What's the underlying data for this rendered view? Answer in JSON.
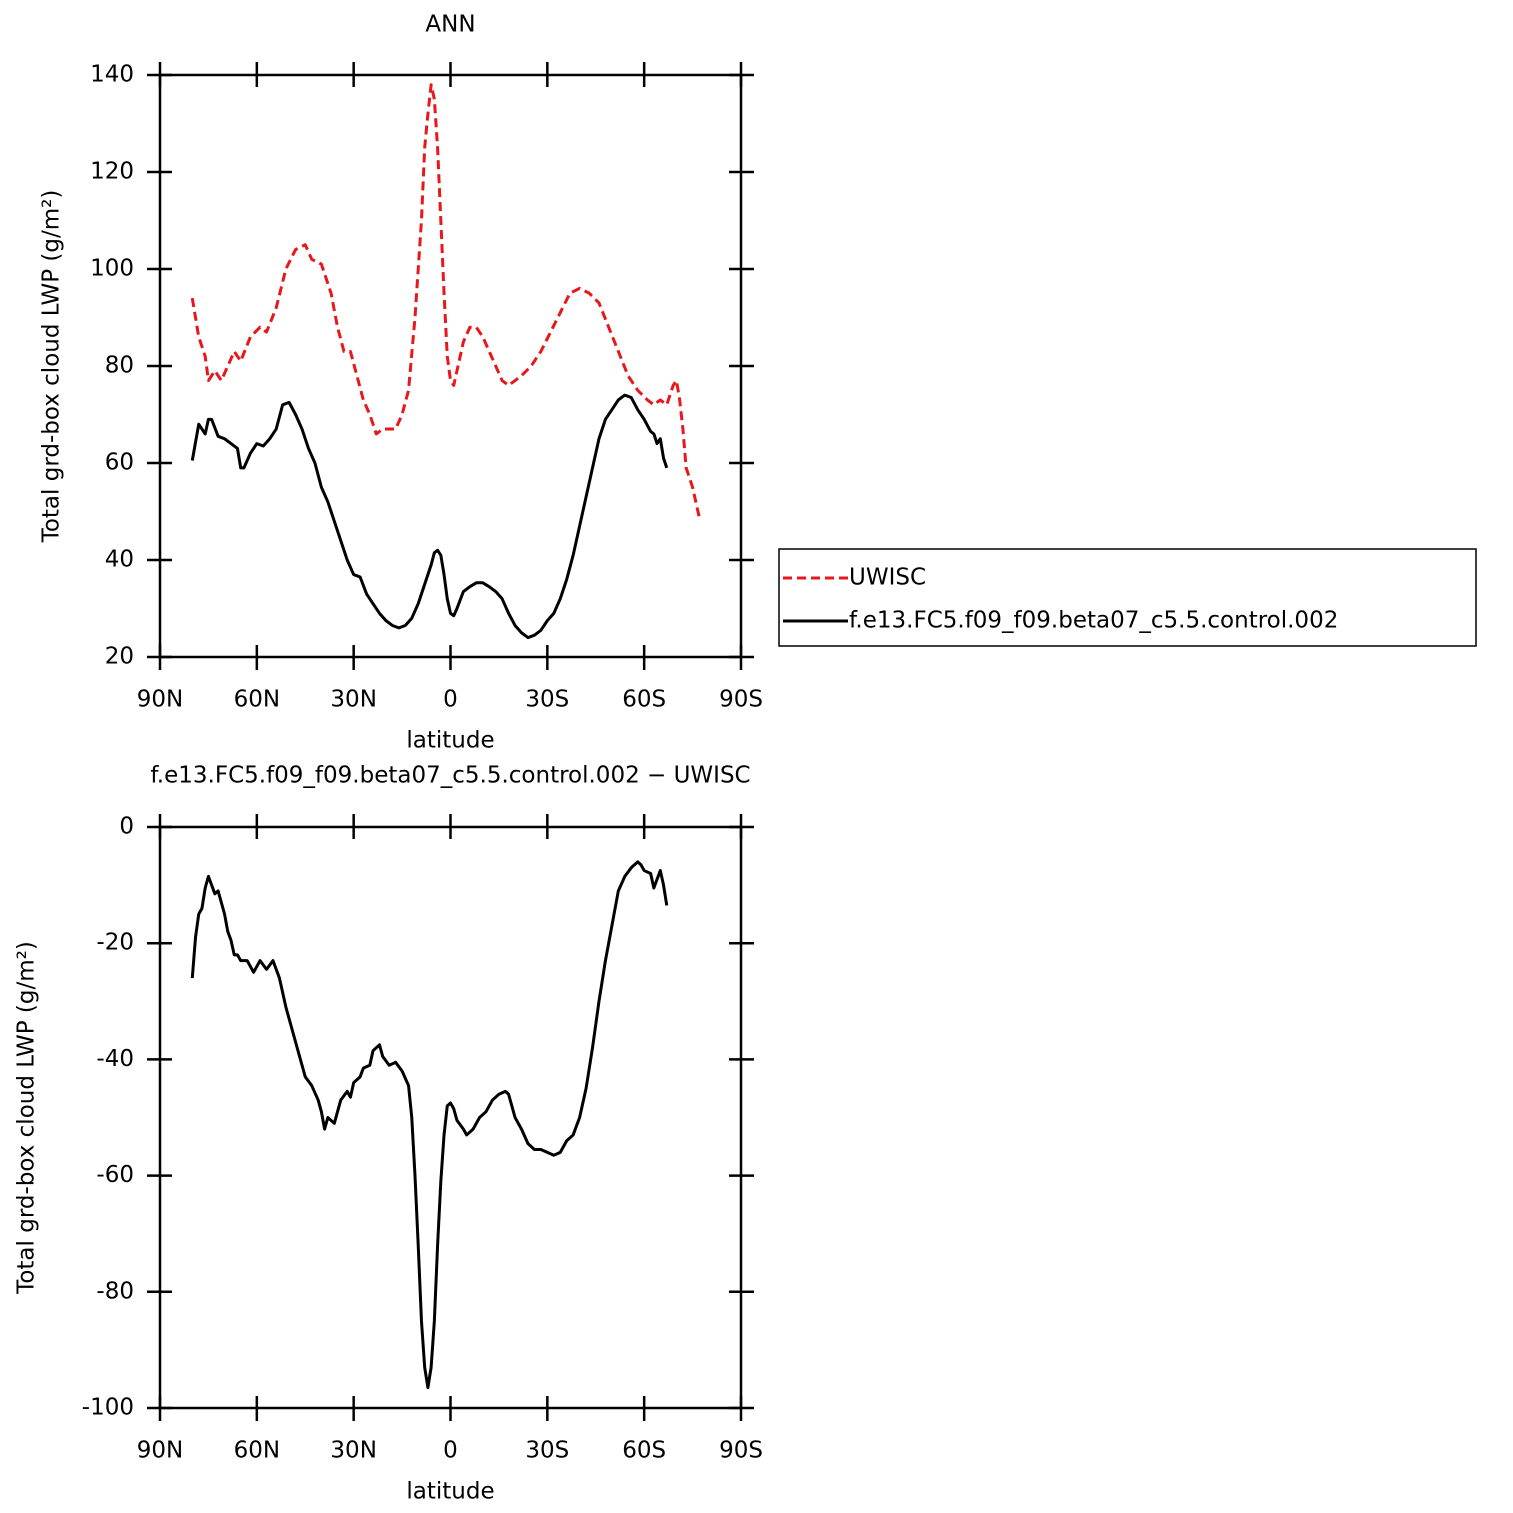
{
  "chart_data": [
    {
      "type": "line",
      "title": "ANN",
      "xlabel": "latitude",
      "ylabel": "Total grd-box cloud LWP (g/m²)",
      "xlim": [
        90,
        -90
      ],
      "xticks": [
        {
          "value": 90,
          "label": "90N"
        },
        {
          "value": 60,
          "label": "60N"
        },
        {
          "value": 30,
          "label": "30N"
        },
        0,
        {
          "value": -30,
          "label": "30S"
        },
        {
          "value": -60,
          "label": "60S"
        },
        {
          "value": -90,
          "label": "90S"
        }
      ],
      "ylim": [
        20,
        140
      ],
      "yticks": [
        20,
        40,
        60,
        80,
        100,
        120,
        140
      ],
      "legend": "right",
      "series": [
        {
          "name": "UWISC",
          "color": "#e8171b",
          "style": "dashed",
          "x": [
            80,
            78,
            76,
            75,
            73,
            71,
            69,
            67,
            65,
            62,
            59,
            57,
            54,
            51,
            48,
            45,
            43,
            40,
            37,
            35,
            33,
            31,
            29,
            27,
            25,
            23,
            21,
            19,
            17,
            15,
            13,
            11,
            9,
            8,
            7,
            6,
            5,
            4,
            3,
            2,
            1,
            0,
            -1,
            -2,
            -4,
            -6,
            -8,
            -10,
            -12,
            -14,
            -16,
            -18,
            -20,
            -22,
            -25,
            -28,
            -31,
            -34,
            -37,
            -40,
            -43,
            -46,
            -49,
            -52,
            -55,
            -58,
            -61,
            -63,
            -65,
            -67,
            -69,
            -70,
            -71,
            -72,
            -73,
            -75,
            -77
          ],
          "values": [
            94,
            86,
            82,
            77,
            79,
            77,
            80,
            83,
            81,
            86,
            88,
            87,
            92,
            100,
            104,
            105,
            102,
            101,
            95,
            88,
            83,
            83,
            78,
            73,
            70,
            66,
            67,
            67,
            67,
            70,
            75,
            90,
            110,
            125,
            132,
            138,
            135,
            125,
            110,
            95,
            82,
            77,
            76,
            79,
            85,
            88,
            88,
            86,
            83,
            80,
            77,
            76,
            77,
            78,
            80,
            83,
            87,
            91,
            95,
            96,
            95,
            93,
            88,
            83,
            78,
            75,
            73,
            72,
            73,
            72,
            76,
            77,
            73,
            67,
            59,
            55,
            49
          ]
        },
        {
          "name": "f.e13.FC5.f09_f09.beta07_c5.5.control.002",
          "color": "#000000",
          "style": "solid",
          "x": [
            80,
            78,
            77,
            76,
            75,
            74,
            72,
            70,
            68,
            66,
            65,
            64,
            62,
            60,
            58,
            56,
            54,
            52,
            50,
            48,
            46,
            44,
            42,
            40,
            38,
            36,
            34,
            32,
            30,
            28,
            26,
            24,
            22,
            20,
            18,
            16,
            14,
            12,
            10,
            8,
            6,
            5,
            4,
            3,
            2,
            1,
            0,
            -1,
            -2,
            -4,
            -6,
            -8,
            -10,
            -12,
            -14,
            -16,
            -18,
            -20,
            -22,
            -24,
            -26,
            -28,
            -30,
            -32,
            -34,
            -36,
            -38,
            -40,
            -42,
            -44,
            -46,
            -48,
            -50,
            -52,
            -54,
            -56,
            -58,
            -60,
            -62,
            -63,
            -64,
            -65,
            -66,
            -67
          ],
          "values": [
            60.5,
            68,
            67,
            66,
            69,
            69,
            65.5,
            65,
            64,
            63,
            59,
            59,
            62,
            64,
            63.5,
            65,
            67,
            72,
            72.5,
            70,
            67,
            63,
            60,
            55,
            52,
            48,
            44,
            40,
            37,
            36.5,
            33,
            31,
            29,
            27.5,
            26.5,
            26,
            26.5,
            28,
            31,
            35,
            39,
            41.5,
            42,
            41,
            37,
            32,
            29,
            28.5,
            30,
            33.5,
            34.5,
            35.3,
            35.3,
            34.5,
            33.5,
            32,
            29,
            26.5,
            25,
            24,
            24.5,
            25.5,
            27.5,
            29,
            32,
            36,
            41,
            47,
            53,
            59,
            65,
            69,
            71,
            73,
            74,
            73.5,
            71,
            69,
            66.5,
            66,
            64,
            65,
            61,
            59
          ]
        }
      ]
    },
    {
      "type": "line",
      "title": "f.e13.FC5.f09_f09.beta07_c5.5.control.002 − UWISC",
      "xlabel": "latitude",
      "ylabel": "Total grd-box cloud LWP (g/m²)",
      "xlim": [
        90,
        -90
      ],
      "xticks": [
        {
          "value": 90,
          "label": "90N"
        },
        {
          "value": 60,
          "label": "60N"
        },
        {
          "value": 30,
          "label": "30N"
        },
        0,
        {
          "value": -30,
          "label": "30S"
        },
        {
          "value": -60,
          "label": "60S"
        },
        {
          "value": -90,
          "label": "90S"
        }
      ],
      "ylim": [
        -100,
        0
      ],
      "yticks": [
        -100,
        -80,
        -60,
        -40,
        -20,
        0
      ],
      "series": [
        {
          "color": "#000000",
          "style": "solid",
          "x": [
            80,
            79,
            78,
            77,
            76,
            75,
            74,
            73,
            72,
            71,
            70,
            69,
            68,
            67,
            66,
            65,
            63,
            62,
            61,
            60,
            59,
            57,
            55,
            53,
            51,
            49,
            47,
            45,
            43,
            41,
            40,
            39,
            38,
            36,
            34,
            32,
            31,
            30,
            28,
            27,
            25,
            24,
            23,
            22,
            21,
            19,
            17,
            15,
            13,
            12,
            11,
            10,
            9,
            8,
            7,
            6,
            5,
            4,
            3,
            2,
            1,
            0,
            -1,
            -2,
            -4,
            -5,
            -7,
            -9,
            -11,
            -13,
            -15,
            -17,
            -18,
            -20,
            -22,
            -24,
            -26,
            -28,
            -30,
            -32,
            -34,
            -36,
            -38,
            -40,
            -42,
            -44,
            -46,
            -48,
            -50,
            -52,
            -54,
            -56,
            -58,
            -59,
            -60,
            -62,
            -63,
            -64,
            -65,
            -66,
            -67
          ],
          "values": [
            -26,
            -19,
            -15,
            -14,
            -10.5,
            -8.5,
            -10,
            -11.5,
            -11,
            -13,
            -15,
            -18,
            -19.5,
            -22,
            -22,
            -23,
            -23,
            -24,
            -25,
            -24,
            -23,
            -24.5,
            -23,
            -26,
            -31,
            -35,
            -39,
            -43,
            -44.5,
            -47,
            -49,
            -52,
            -50,
            -51,
            -47,
            -45.5,
            -46.5,
            -44,
            -43,
            -41.5,
            -41,
            -38.5,
            -38,
            -37.5,
            -39.5,
            -41,
            -40.5,
            -42,
            -44.5,
            -50,
            -60,
            -72,
            -85,
            -93,
            -96.5,
            -93,
            -85,
            -72,
            -61,
            -53,
            -48,
            -47.5,
            -48.5,
            -50.5,
            -52,
            -53,
            -52,
            -50,
            -49,
            -47,
            -46,
            -45.5,
            -46,
            -50,
            -52,
            -54.5,
            -55.5,
            -55.5,
            -56,
            -56.5,
            -56,
            -54,
            -53,
            -50,
            -45,
            -38,
            -30,
            -23,
            -17,
            -11,
            -8.5,
            -7,
            -6,
            -6.5,
            -7.5,
            -8,
            -10.5,
            -9,
            -7.5,
            -10,
            -13.5
          ]
        }
      ]
    }
  ]
}
